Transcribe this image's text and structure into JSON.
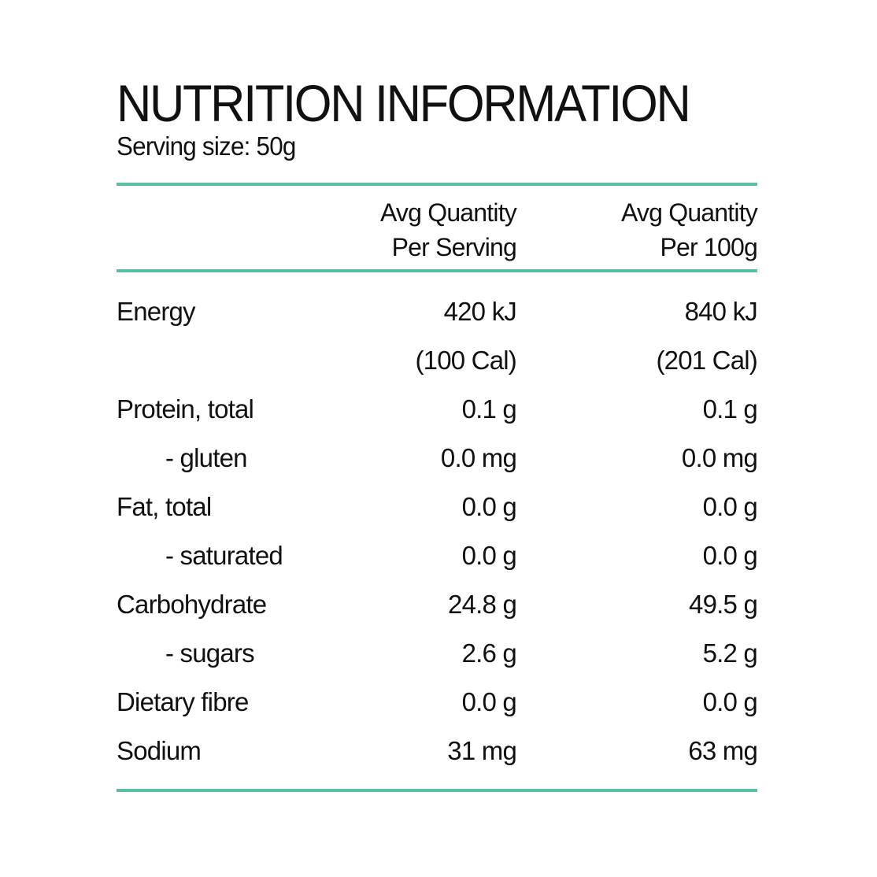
{
  "panel": {
    "title": "NUTRITION INFORMATION",
    "serving_size": "Serving size: 50g",
    "accent_color": "#5bbfa8"
  },
  "columns": [
    {
      "line1": "Avg Quantity",
      "line2": "Per Serving"
    },
    {
      "line1": "Avg Quantity",
      "line2": "Per 100g"
    }
  ],
  "rows": [
    {
      "label": "Energy",
      "per_serving": "420 kJ",
      "per_100g": "840 kJ",
      "sub": false
    },
    {
      "label": "",
      "per_serving": "(100 Cal)",
      "per_100g": "(201 Cal)",
      "sub": false
    },
    {
      "label": "Protein, total",
      "per_serving": "0.1 g",
      "per_100g": "0.1 g",
      "sub": false
    },
    {
      "label": "- gluten",
      "per_serving": "0.0 mg",
      "per_100g": "0.0 mg",
      "sub": true
    },
    {
      "label": "Fat, total",
      "per_serving": "0.0 g",
      "per_100g": "0.0 g",
      "sub": false
    },
    {
      "label": "- saturated",
      "per_serving": "0.0 g",
      "per_100g": "0.0 g",
      "sub": true
    },
    {
      "label": "Carbohydrate",
      "per_serving": "24.8 g",
      "per_100g": "49.5 g",
      "sub": false
    },
    {
      "label": "- sugars",
      "per_serving": "2.6 g",
      "per_100g": "5.2 g",
      "sub": true
    },
    {
      "label": "Dietary fibre",
      "per_serving": "0.0 g",
      "per_100g": "0.0 g",
      "sub": false
    },
    {
      "label": "Sodium",
      "per_serving": "31 mg",
      "per_100g": "63 mg",
      "sub": false
    }
  ]
}
